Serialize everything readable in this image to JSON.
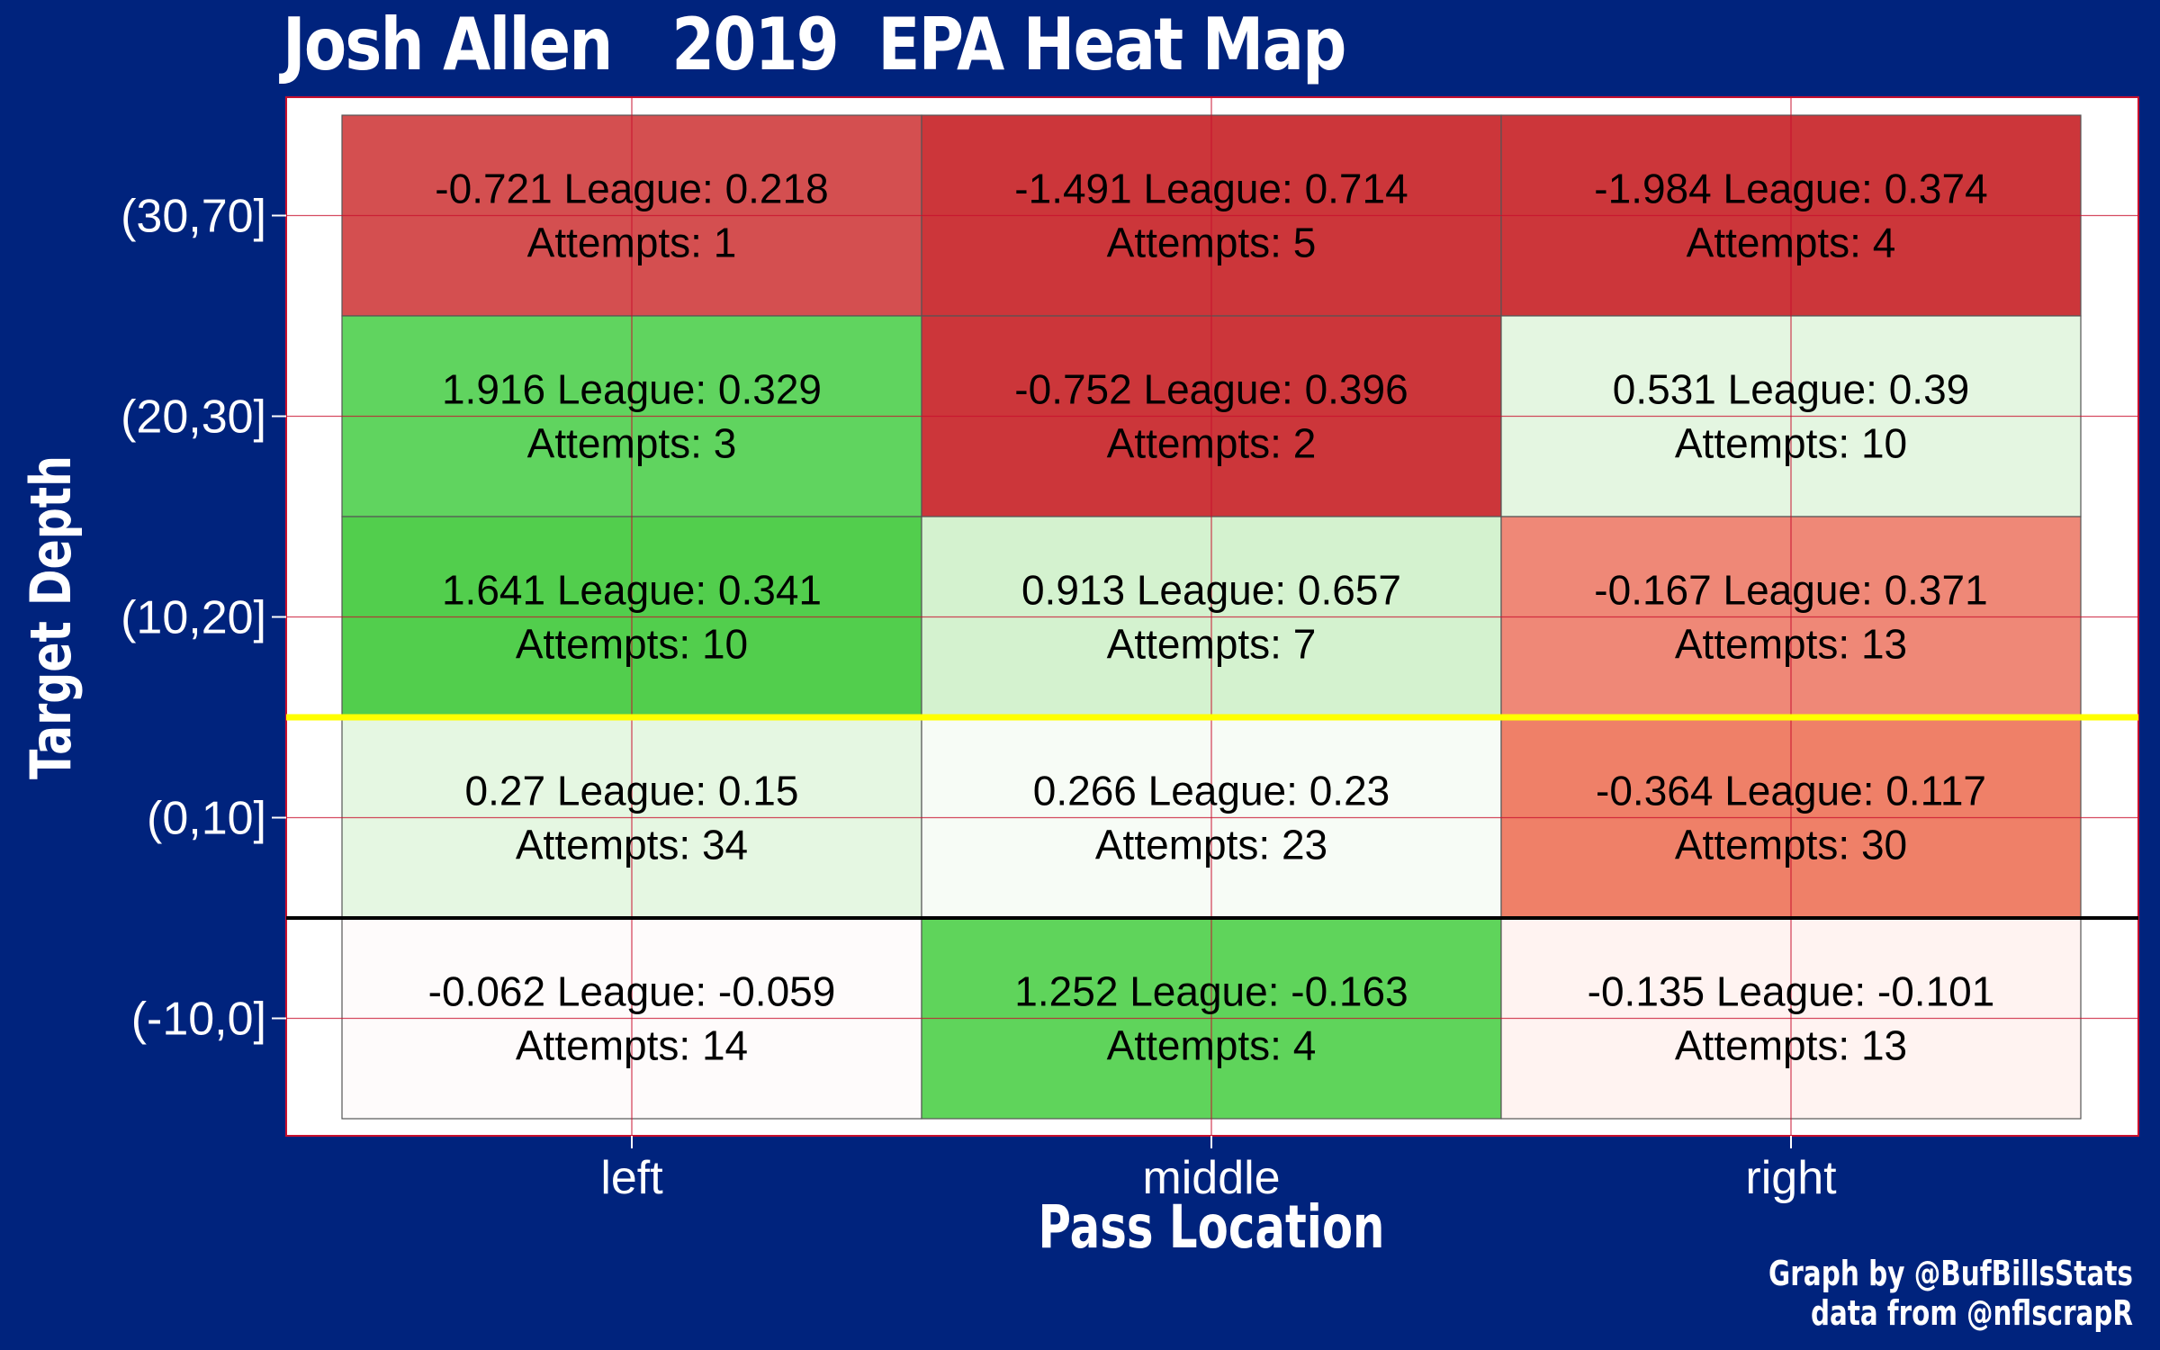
{
  "chart_data": {
    "type": "heatmap",
    "title": "Josh Allen   2019  EPA Heat Map",
    "xlabel": "Pass Location",
    "ylabel": "Target Depth",
    "x_categories": [
      "left",
      "middle",
      "right"
    ],
    "y_categories": [
      "(30,70]",
      "(20,30]",
      "(10,20]",
      "(0,10]",
      "(-10,0]"
    ],
    "league_label": "League:",
    "attempts_label": "Attempts:",
    "cells": [
      {
        "x": "left",
        "y": "(30,70]",
        "epa": -0.721,
        "league": 0.218,
        "attempts": 1,
        "color": "#d44f50"
      },
      {
        "x": "middle",
        "y": "(30,70]",
        "epa": -1.491,
        "league": 0.714,
        "attempts": 5,
        "color": "#cc363a"
      },
      {
        "x": "right",
        "y": "(30,70]",
        "epa": -1.984,
        "league": 0.374,
        "attempts": 4,
        "color": "#cc363a"
      },
      {
        "x": "left",
        "y": "(20,30]",
        "epa": 1.916,
        "league": 0.329,
        "attempts": 3,
        "color": "#60d45f"
      },
      {
        "x": "middle",
        "y": "(20,30]",
        "epa": -0.752,
        "league": 0.396,
        "attempts": 2,
        "color": "#cc363a"
      },
      {
        "x": "right",
        "y": "(20,30]",
        "epa": 0.531,
        "league": 0.39,
        "attempts": 10,
        "color": "#e4f6e1"
      },
      {
        "x": "left",
        "y": "(10,20]",
        "epa": 1.641,
        "league": 0.341,
        "attempts": 10,
        "color": "#52ce4d"
      },
      {
        "x": "middle",
        "y": "(10,20]",
        "epa": 0.913,
        "league": 0.657,
        "attempts": 7,
        "color": "#d4f2cf"
      },
      {
        "x": "right",
        "y": "(10,20]",
        "epa": -0.167,
        "league": 0.371,
        "attempts": 13,
        "color": "#ef8877"
      },
      {
        "x": "left",
        "y": "(0,10]",
        "epa": 0.27,
        "league": 0.15,
        "attempts": 34,
        "color": "#e5f7e2"
      },
      {
        "x": "middle",
        "y": "(0,10]",
        "epa": 0.266,
        "league": 0.23,
        "attempts": 23,
        "color": "#f7fcf6"
      },
      {
        "x": "right",
        "y": "(0,10]",
        "epa": -0.364,
        "league": 0.117,
        "attempts": 30,
        "color": "#ef8068"
      },
      {
        "x": "left",
        "y": "(-10,0]",
        "epa": -0.062,
        "league": -0.059,
        "attempts": 14,
        "color": "#fefbfb"
      },
      {
        "x": "middle",
        "y": "(-10,0]",
        "epa": 1.252,
        "league": -0.163,
        "attempts": 4,
        "color": "#5fd45b"
      },
      {
        "x": "right",
        "y": "(-10,0]",
        "epa": -0.135,
        "league": -0.101,
        "attempts": 13,
        "color": "#fff3f1"
      }
    ],
    "reference_lines": [
      {
        "between": [
          "(10,20]",
          "(0,10]"
        ],
        "color": "#ffff00"
      },
      {
        "between": [
          "(0,10]",
          "(-10,0]"
        ],
        "color": "#000000"
      }
    ],
    "grid": true
  },
  "colors": {
    "background": "#00237d",
    "panel": "#ffffff",
    "panel_border": "#c8102e",
    "grid": "#c8102e"
  },
  "credits": [
    "Graph by @BufBillsStats",
    "data from @nflscrapR"
  ]
}
